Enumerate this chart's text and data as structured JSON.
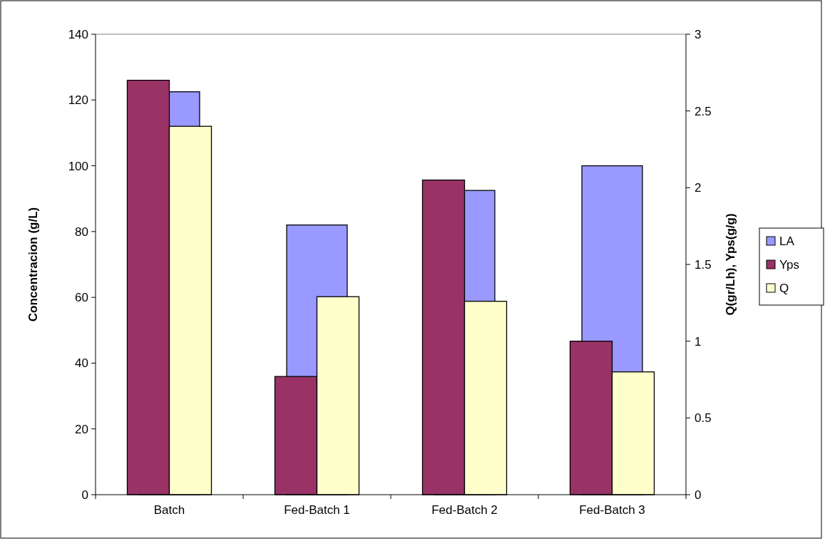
{
  "chart_data": {
    "type": "bar",
    "categories": [
      "Batch",
      "Fed-Batch 1",
      "Fed-Batch 2",
      "Fed-Batch 3"
    ],
    "ylabel": "Concentracion (g/L)",
    "y2label": "Q(gr/Lh), Yps(g/g)",
    "ylim": [
      0,
      140
    ],
    "yticks": [
      0,
      20,
      40,
      60,
      80,
      100,
      120,
      140
    ],
    "y2lim": [
      0,
      3
    ],
    "y2ticks": [
      0,
      0.5,
      1,
      1.5,
      2,
      2.5,
      3
    ],
    "series": [
      {
        "name": "LA",
        "color": "#9999ff",
        "values": [
          122.5,
          82,
          92.5,
          100
        ]
      },
      {
        "name": "Yps",
        "color": "#993366",
        "axis": "y2",
        "values": [
          2.7,
          0.77,
          2.05,
          1.0
        ]
      },
      {
        "name": "Q",
        "color": "#ffffcc",
        "axis": "y2",
        "values": [
          2.4,
          1.29,
          1.26,
          0.8
        ]
      }
    ],
    "grid": false,
    "legend": "right"
  }
}
